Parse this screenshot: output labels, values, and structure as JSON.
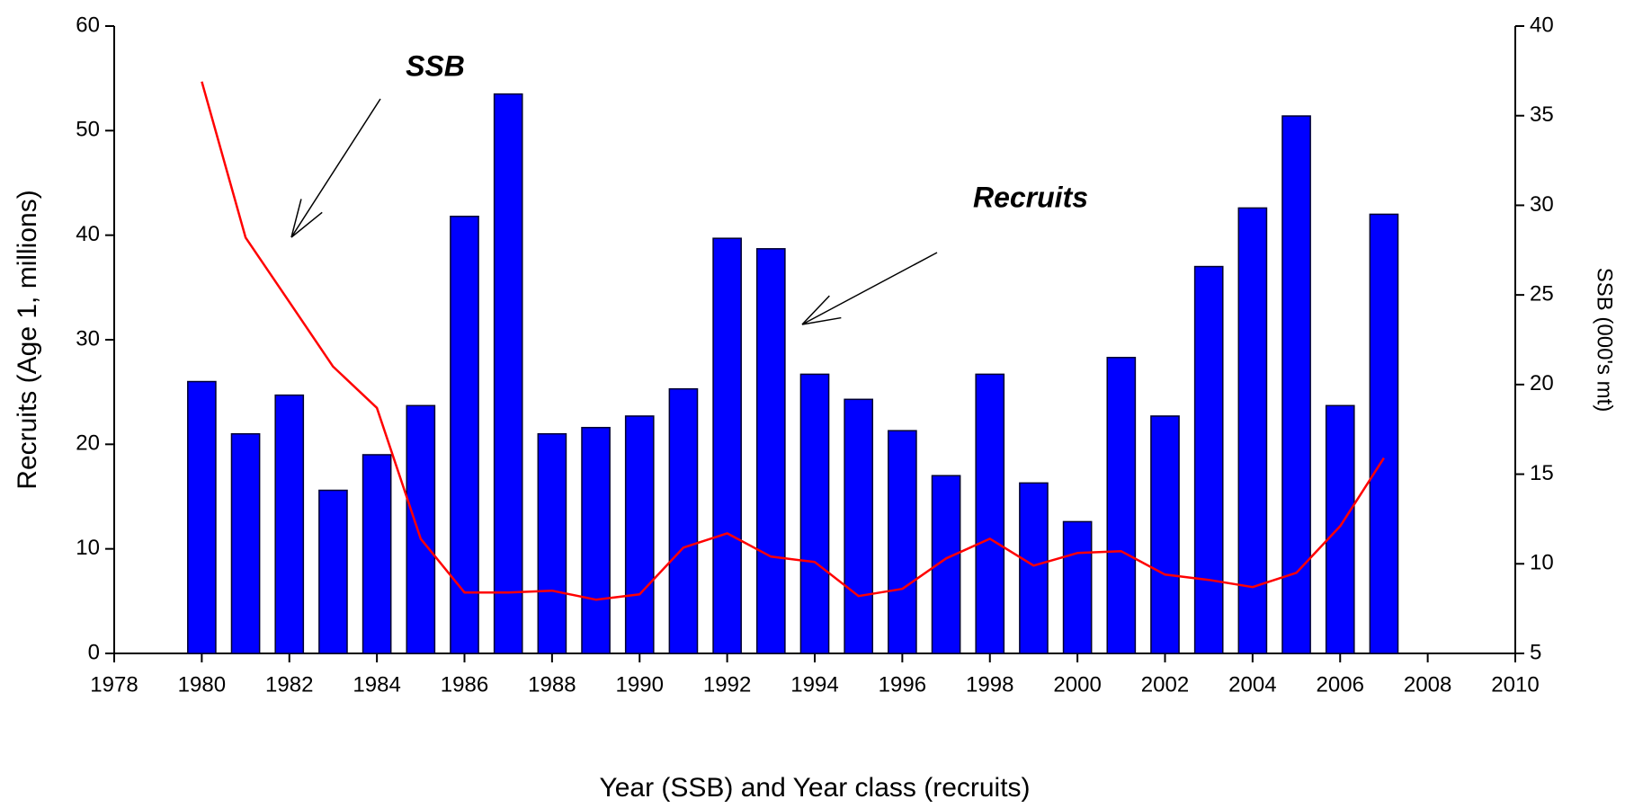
{
  "chart_data": {
    "type": "bar_line",
    "xlabel": "Year (SSB) and Year class (recruits)",
    "ylabel": "Recruits (Age 1, millions)",
    "y2label": "SSB (000's mt)",
    "annotations": [
      {
        "text": "SSB"
      },
      {
        "text": "Recruits"
      }
    ],
    "x": [
      1980,
      1981,
      1982,
      1983,
      1984,
      1985,
      1986,
      1987,
      1988,
      1989,
      1990,
      1991,
      1992,
      1993,
      1994,
      1995,
      1996,
      1997,
      1998,
      1999,
      2000,
      2001,
      2002,
      2003,
      2004,
      2005,
      2006,
      2007
    ],
    "series": [
      {
        "name": "Recruits",
        "type": "bar",
        "color": "#0000ff",
        "values": [
          26,
          21,
          24.7,
          15.6,
          19,
          23.7,
          41.8,
          53.5,
          21,
          21.6,
          22.7,
          25.3,
          39.7,
          38.7,
          26.7,
          24.3,
          21.3,
          17,
          26.7,
          16.3,
          12.6,
          28.3,
          22.7,
          37,
          42.6,
          51.4,
          23.7,
          42
        ]
      },
      {
        "name": "SSB",
        "type": "line",
        "axis": "y2",
        "color": "#ff0000",
        "values": [
          36.9,
          28.2,
          24.6,
          21,
          18.7,
          11.4,
          8.4,
          8.4,
          8.5,
          8,
          8.3,
          10.9,
          11.7,
          10.4,
          10.1,
          8.2,
          8.6,
          10.3,
          11.4,
          9.9,
          10.6,
          10.7,
          9.4,
          9.1,
          8.7,
          9.5,
          12.1,
          15.9
        ]
      }
    ],
    "xlim": [
      1978,
      2010
    ],
    "xticks": [
      1978,
      1980,
      1982,
      1984,
      1986,
      1988,
      1990,
      1992,
      1994,
      1996,
      1998,
      2000,
      2002,
      2004,
      2006,
      2008,
      2010
    ],
    "ylim": [
      0,
      60
    ],
    "yticks": [
      0,
      10,
      20,
      30,
      40,
      50,
      60
    ],
    "y2lim": [
      5,
      40
    ],
    "y2ticks": [
      5,
      10,
      15,
      20,
      25,
      30,
      35,
      40
    ]
  }
}
